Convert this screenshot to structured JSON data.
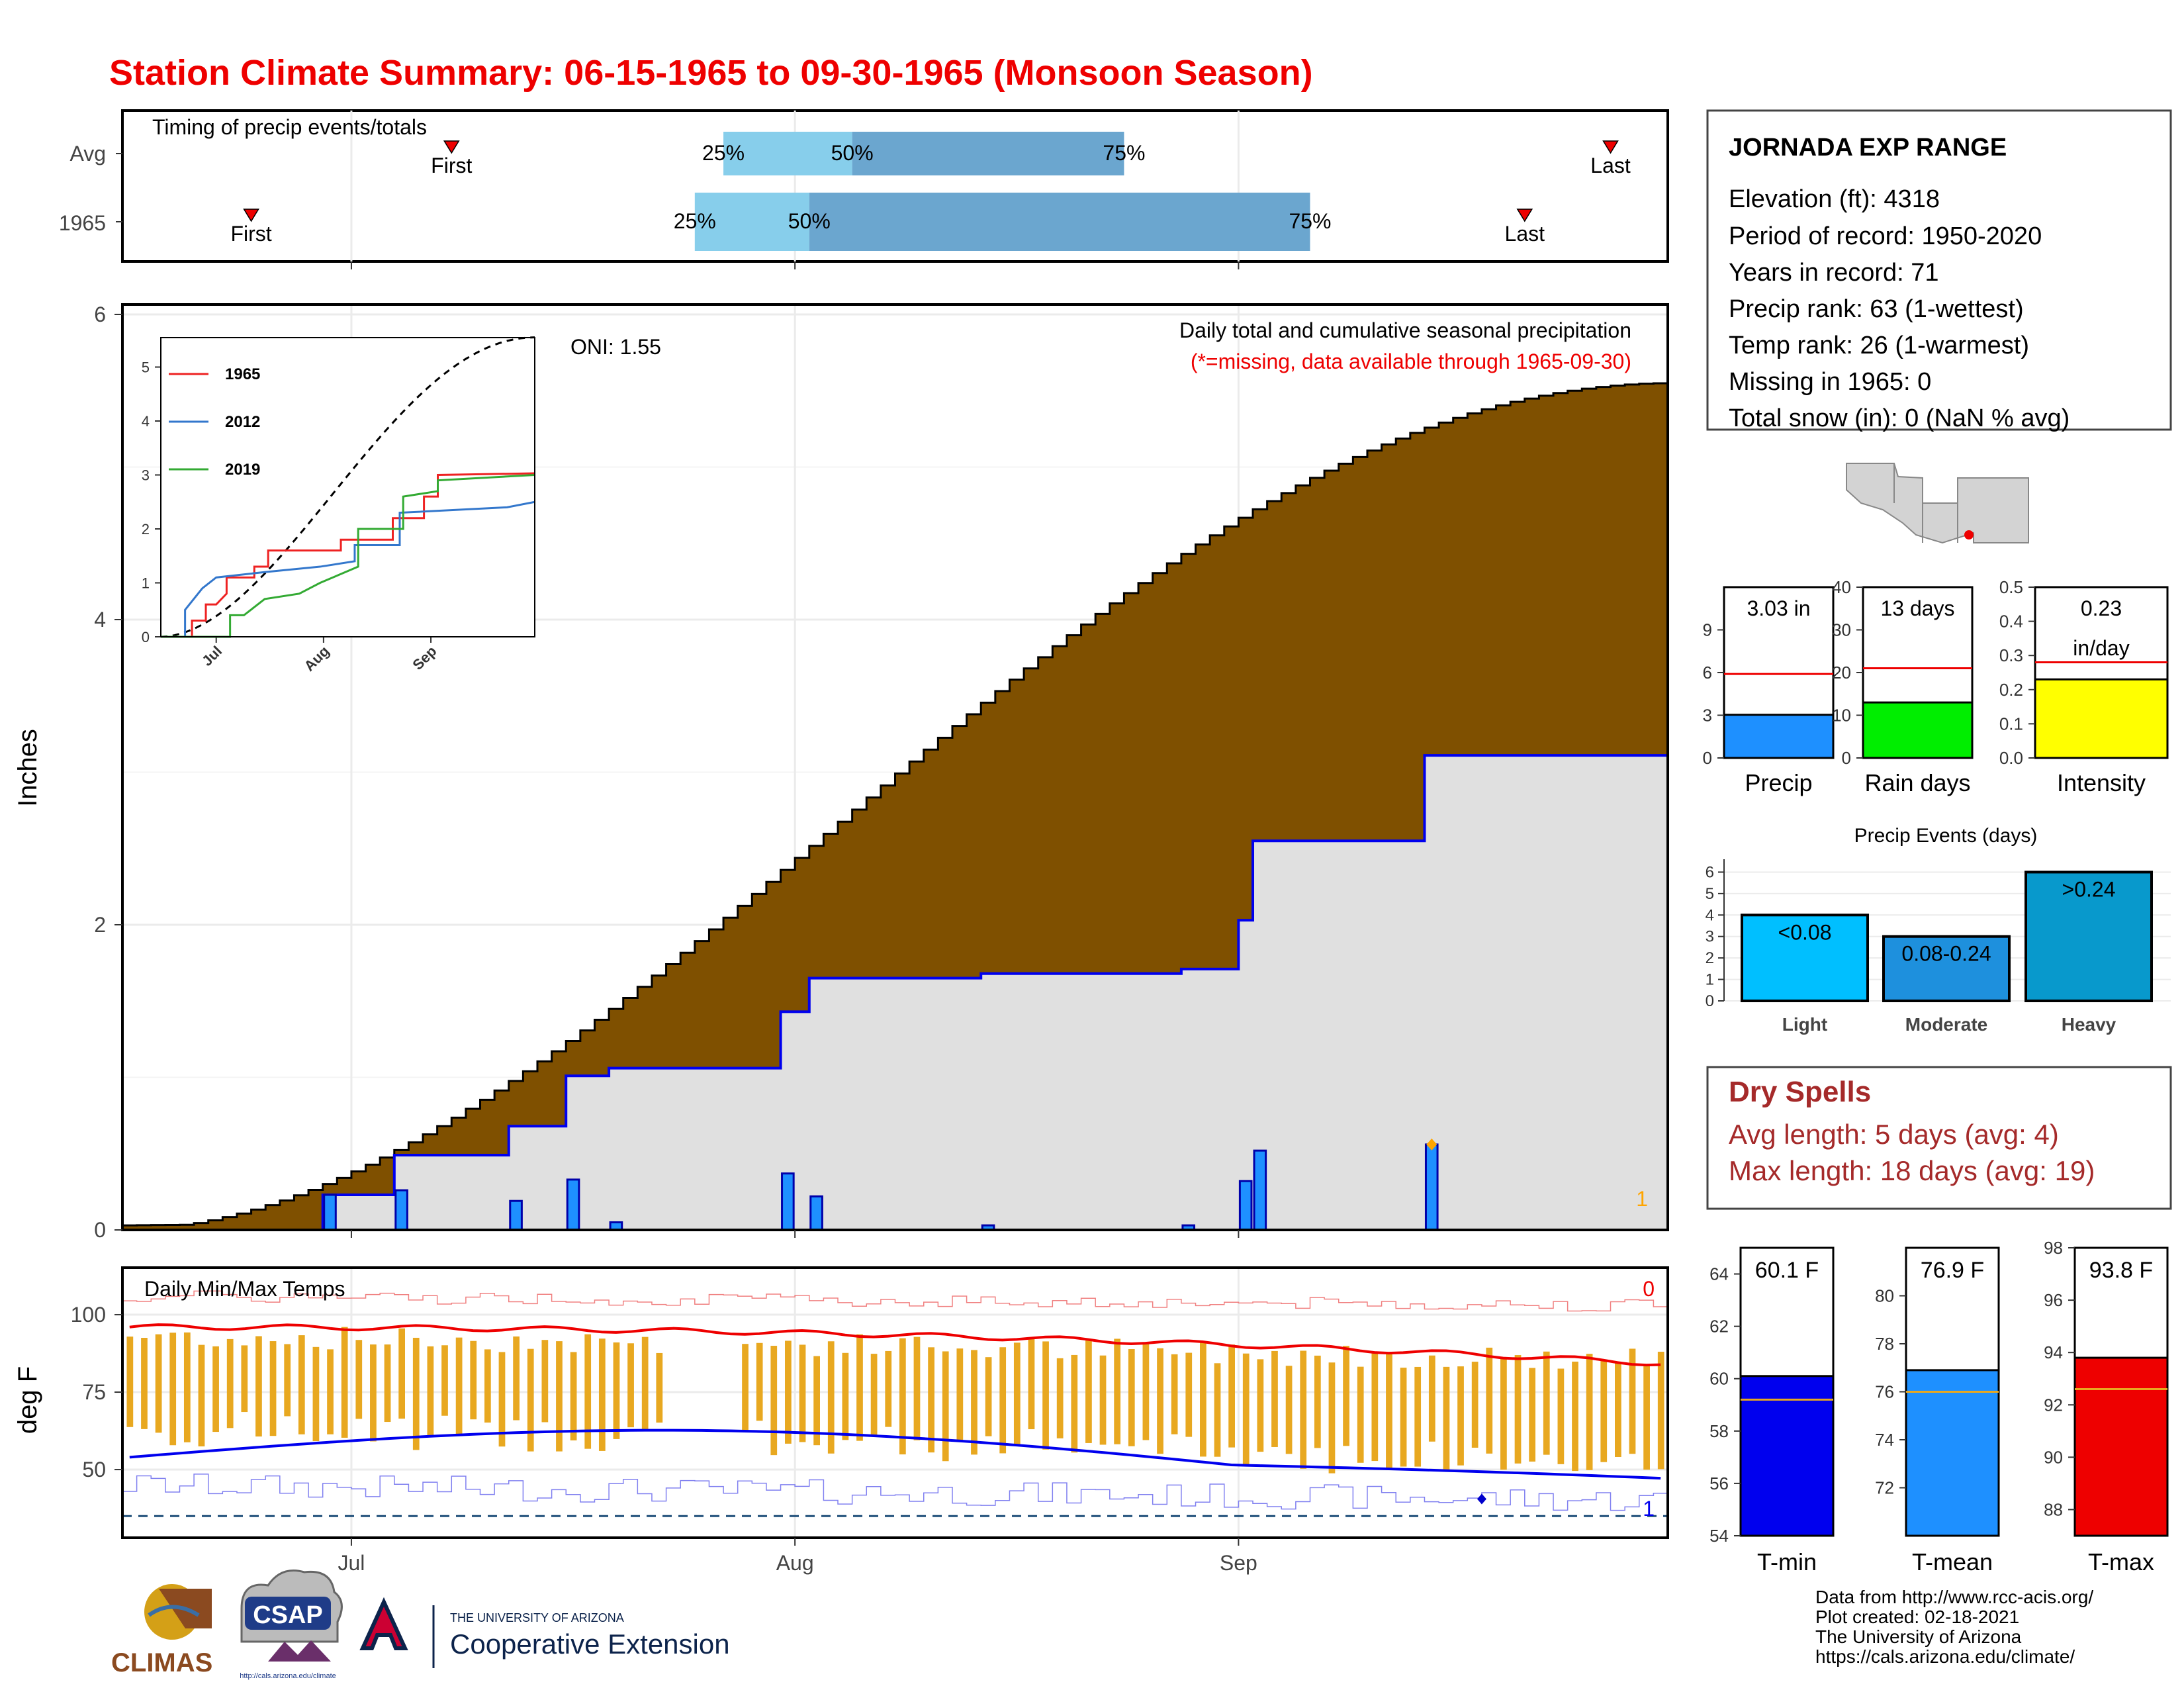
{
  "title": "Station Climate Summary: 06-15-1965 to 09-30-1965 (Monsoon Season)",
  "colors": {
    "title": "#ee0000",
    "cum_avg": "#7f5000",
    "cum_year": "#e0e0e0",
    "daily_bar": "#1e90ff",
    "bar_light": "#87ceeb",
    "bar_dark": "#6ba6cf",
    "tmax": "#ee0000",
    "tmin": "#0000ee",
    "temp_bar": "#e8a820",
    "dry": "#a52a2a"
  },
  "timing": {
    "title": "Timing of precip events/totals",
    "rows": [
      {
        "label": "Avg",
        "first": "First",
        "last": "Last",
        "p25": "25%",
        "p50": "50%",
        "p75": "75%",
        "first_day": "07-08",
        "p25_day": "07-27",
        "p50_day": "08-05",
        "p75_day": "08-24",
        "last_day": "09-27"
      },
      {
        "label": "1965",
        "first": "First",
        "last": "Last",
        "p25": "25%",
        "p50": "50%",
        "p75": "75%",
        "first_day": "06-24",
        "p25_day": "07-25",
        "p50_day": "08-02",
        "p75_day": "09-06",
        "last_day": "09-21"
      }
    ]
  },
  "main": {
    "ylabel": "Inches",
    "yticks": [
      "0",
      "2",
      "4",
      "6"
    ],
    "label_desc": "Daily total and cumulative seasonal precipitation",
    "label_missing": "(*=missing, data available through 1965-09-30)",
    "oni": "ONI: 1.55",
    "missing_count": "1",
    "months": [
      "Jul",
      "Aug",
      "Sep"
    ]
  },
  "inset": {
    "series": [
      {
        "name": "1965",
        "color": "#ee2222"
      },
      {
        "name": "2012",
        "color": "#3377cc"
      },
      {
        "name": "2019",
        "color": "#33aa33"
      }
    ],
    "yticks": [
      "0",
      "1",
      "2",
      "3",
      "4",
      "5"
    ],
    "months": [
      "Jul",
      "Aug",
      "Sep"
    ]
  },
  "temps": {
    "ylabel": "deg F",
    "label": "Daily Min/Max Temps",
    "yticks": [
      "50",
      "75",
      "100"
    ],
    "max_count": "0",
    "min_count": "1",
    "months": [
      "Jul",
      "Aug",
      "Sep"
    ]
  },
  "station": {
    "name": "JORNADA EXP RANGE",
    "lines": [
      "Elevation (ft): 4318",
      "Period of record: 1950-2020",
      "Years in record: 71",
      "Precip rank: 63 (1-wettest)",
      "Temp rank: 26 (1-warmest)",
      "Missing in 1965: 0",
      "Total snow (in): 0 (NaN % avg)"
    ]
  },
  "mini_precip": [
    {
      "label": "Precip",
      "value_text": "3.03 in",
      "value": 3.03,
      "avg": 5.9,
      "ymax": 12,
      "ticks": [
        0,
        3,
        6,
        9
      ],
      "color": "#1e90ff"
    },
    {
      "label": "Rain days",
      "value_text": "13 days",
      "value": 13,
      "avg": 21,
      "ymax": 40,
      "ticks": [
        0,
        10,
        20,
        30,
        40
      ],
      "color": "#00ee00"
    },
    {
      "label": "Intensity",
      "value_text": "0.23",
      "value_text2": "in/day",
      "value": 0.23,
      "avg": 0.28,
      "ymax": 0.5,
      "ticks": [
        0.0,
        0.1,
        0.2,
        0.3,
        0.4,
        0.5
      ],
      "color": "#ffff00"
    }
  ],
  "events": {
    "title": "Precip Events (days)",
    "yticks": [
      0,
      1,
      2,
      3,
      4,
      5,
      6
    ],
    "bars": [
      {
        "name": "Light",
        "label": "<0.08",
        "value": 4,
        "color": "#00bfff"
      },
      {
        "name": "Moderate",
        "label": "0.08-0.24",
        "value": 3,
        "color": "#1e90dd"
      },
      {
        "name": "Heavy",
        "label": ">0.24",
        "value": 6,
        "color": "#0899cc"
      }
    ]
  },
  "dry": {
    "title": "Dry Spells",
    "avg": "Avg length: 5 days (avg: 4)",
    "max": "Max length: 18 days (avg: 19)"
  },
  "temp_bars": [
    {
      "label": "T-min",
      "value_text": "60.1 F",
      "value": 60.1,
      "avg": 59.2,
      "ymin": 54,
      "ymax": 65,
      "ticks": [
        54,
        56,
        58,
        60,
        62,
        64
      ],
      "color": "#0000ee"
    },
    {
      "label": "T-mean",
      "value_text": "76.9 F",
      "value": 76.9,
      "avg": 76.0,
      "ymin": 70,
      "ymax": 82,
      "ticks": [
        72,
        74,
        76,
        78,
        80
      ],
      "color": "#1e90ff"
    },
    {
      "label": "T-max",
      "value_text": "93.8 F",
      "value": 93.8,
      "avg": 92.6,
      "ymin": 87,
      "ymax": 98,
      "ticks": [
        88,
        90,
        92,
        94,
        96,
        98
      ],
      "color": "#ee0000"
    }
  ],
  "credits": [
    "Data from http://www.rcc-acis.org/",
    "Plot created: 02-18-2021",
    "The University of Arizona",
    "https://cals.arizona.edu/climate/"
  ],
  "logos": {
    "climas": "CLIMAS",
    "csap": "CSAP",
    "csap_url": "http://cals.arizona.edu/climate",
    "ua_small": "THE UNIVERSITY OF ARIZONA",
    "ua_big": "Cooperative Extension"
  }
}
